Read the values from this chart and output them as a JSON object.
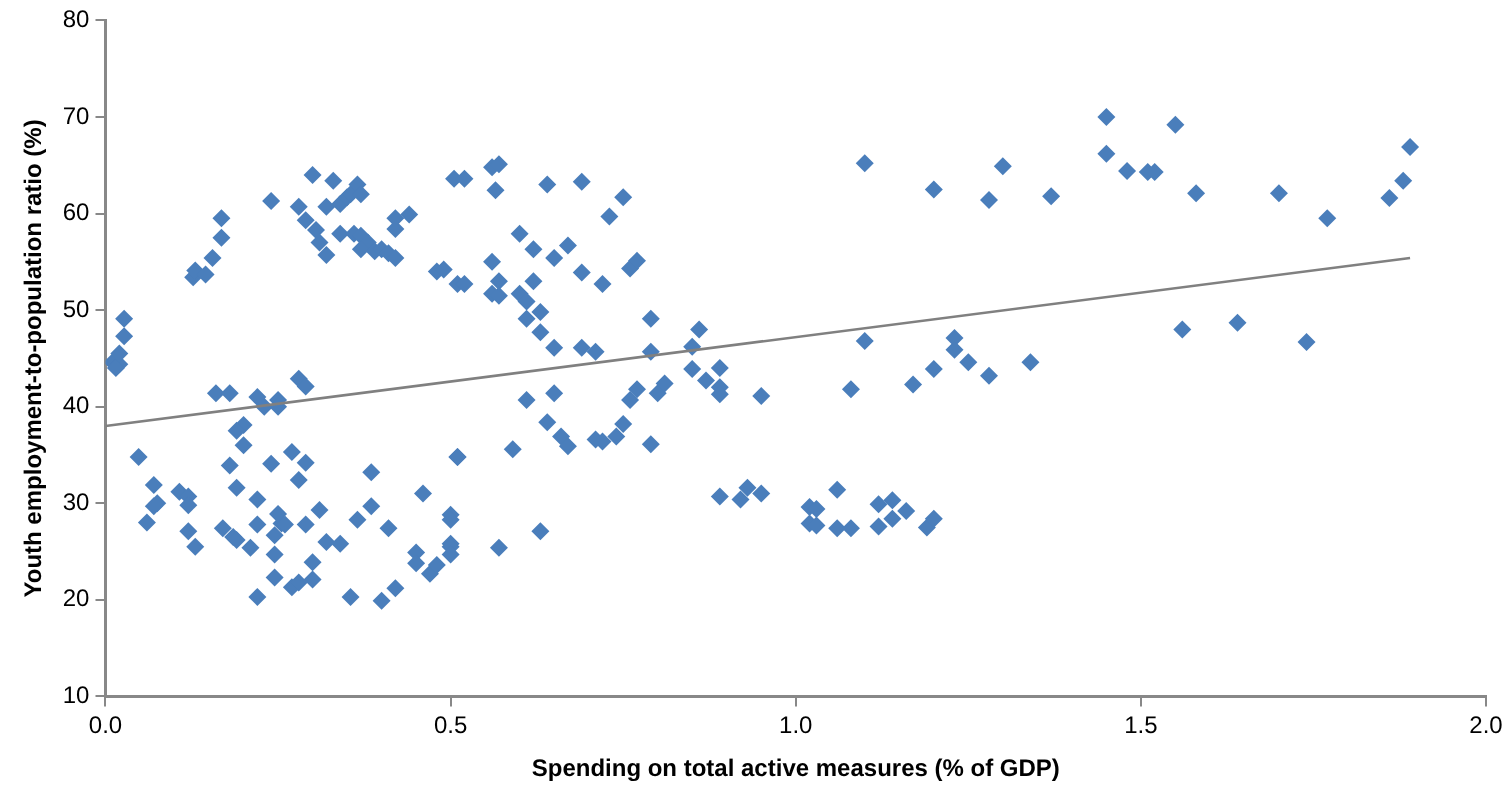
{
  "chart_data": {
    "type": "scatter",
    "xlabel": "Spending on total active measures (% of GDP)",
    "ylabel": "Youth employment-to-population ratio (%)",
    "xlim": [
      0,
      2
    ],
    "ylim": [
      10,
      80
    ],
    "xticks": [
      {
        "value": 0,
        "label": "0.0"
      },
      {
        "value": 0.5,
        "label": "0.5"
      },
      {
        "value": 1,
        "label": "1.0"
      },
      {
        "value": 1.5,
        "label": "1.5"
      },
      {
        "value": 2,
        "label": "2.0"
      }
    ],
    "yticks": [
      10,
      20,
      30,
      40,
      50,
      60,
      70,
      80
    ],
    "marker": "diamond",
    "series": [
      {
        "color": "#4a7ebb",
        "x": [
          0.01,
          0.02,
          0.015,
          0.02,
          0.027,
          0.027,
          0.048,
          0.06,
          0.07,
          0.07,
          0.075,
          0.107,
          0.12,
          0.12,
          0.12,
          0.13,
          0.127,
          0.13,
          0.145,
          0.155,
          0.168,
          0.168,
          0.16,
          0.18,
          0.2,
          0.2,
          0.19,
          0.18,
          0.19,
          0.17,
          0.185,
          0.19,
          0.21,
          0.22,
          0.22,
          0.24,
          0.24,
          0.22,
          0.23,
          0.25,
          0.25,
          0.22,
          0.25,
          0.255,
          0.245,
          0.26,
          0.245,
          0.245,
          0.27,
          0.28,
          0.29,
          0.28,
          0.29,
          0.29,
          0.3,
          0.3,
          0.27,
          0.28,
          0.31,
          0.32,
          0.34,
          0.355,
          0.365,
          0.385,
          0.385,
          0.41,
          0.4,
          0.42,
          0.45,
          0.45,
          0.47,
          0.48,
          0.46,
          0.5,
          0.5,
          0.51,
          0.28,
          0.3,
          0.33,
          0.29,
          0.305,
          0.31,
          0.32,
          0.32,
          0.34,
          0.35,
          0.355,
          0.365,
          0.37,
          0.34,
          0.36,
          0.37,
          0.38,
          0.37,
          0.39,
          0.4,
          0.41,
          0.42,
          0.42,
          0.42,
          0.44,
          0.48,
          0.505,
          0.51,
          0.52,
          0.56,
          0.57,
          0.565,
          0.64,
          0.69,
          0.75,
          0.73,
          0.49,
          0.52,
          0.56,
          0.57,
          0.56,
          0.57,
          0.6,
          0.62,
          0.6,
          0.61,
          0.63,
          0.61,
          0.62,
          0.63,
          0.65,
          0.67,
          0.69,
          0.72,
          0.76,
          0.77,
          0.79,
          0.65,
          0.69,
          0.71,
          0.79,
          0.86,
          0.85,
          0.85,
          0.87,
          0.89,
          0.89,
          0.89,
          0.95,
          0.61,
          0.65,
          0.76,
          0.77,
          0.8,
          0.81,
          0.51,
          0.59,
          0.64,
          0.66,
          0.67,
          0.71,
          0.72,
          0.74,
          0.75,
          0.79,
          0.5,
          0.5,
          0.5,
          0.57,
          0.63,
          0.89,
          0.92,
          0.93,
          0.95,
          1.02,
          1.02,
          1.1,
          1.2,
          1.28,
          1.3,
          1.37,
          1.45,
          1.48,
          1.51,
          1.1,
          1.08,
          1.17,
          1.2,
          1.23,
          1.23,
          1.25,
          1.28,
          1.34,
          1.03,
          1.03,
          1.06,
          1.06,
          1.08,
          1.12,
          1.12,
          1.14,
          1.14,
          1.16,
          1.19,
          1.2,
          1.45,
          1.55,
          1.52,
          1.58,
          1.7,
          1.77,
          1.86,
          1.88,
          1.89,
          1.56,
          1.64,
          1.74
        ],
        "values": [
          44.6,
          44.4,
          44,
          45.5,
          47.3,
          49.1,
          34.8,
          28,
          31.9,
          29.7,
          30,
          31.2,
          30.7,
          29.8,
          27.1,
          25.5,
          53.4,
          54.1,
          53.7,
          55.4,
          57.5,
          59.5,
          41.4,
          41.4,
          38.1,
          36,
          37.5,
          33.9,
          31.6,
          27.4,
          26.5,
          26.2,
          25.4,
          30.4,
          20.3,
          61.3,
          34.1,
          41,
          40,
          40.7,
          40,
          27.8,
          28.9,
          27.9,
          26.7,
          27.8,
          24.7,
          22.3,
          35.3,
          32.4,
          34.2,
          42.9,
          42.1,
          27.8,
          23.9,
          22.1,
          21.3,
          21.8,
          29.3,
          26,
          25.8,
          20.3,
          28.3,
          29.7,
          33.2,
          27.4,
          19.9,
          21.2,
          24.9,
          23.8,
          22.7,
          23.6,
          31,
          28.8,
          25.8,
          34.8,
          60.7,
          64,
          63.4,
          59.3,
          58.3,
          57,
          55.7,
          60.7,
          61,
          61.7,
          62,
          63,
          62,
          57.9,
          57.9,
          57.7,
          57,
          56.3,
          56.1,
          56.3,
          55.9,
          55.4,
          59.5,
          58.4,
          59.9,
          54,
          63.6,
          52.7,
          63.6,
          64.8,
          65.1,
          62.4,
          63,
          63.3,
          61.7,
          59.7,
          54.2,
          52.7,
          55,
          53,
          51.7,
          51.5,
          57.9,
          56.3,
          51.7,
          50.9,
          49.8,
          49.1,
          53,
          47.7,
          55.4,
          56.7,
          53.9,
          52.7,
          54.3,
          55.1,
          49.1,
          46.1,
          46.1,
          45.7,
          45.7,
          48,
          46.2,
          43.9,
          42.7,
          44,
          42,
          41.3,
          41.1,
          40.7,
          41.4,
          40.7,
          41.8,
          41.4,
          42.4,
          34.8,
          35.6,
          38.4,
          36.9,
          35.9,
          36.6,
          36.4,
          36.9,
          38.2,
          36.1,
          28.3,
          25.5,
          24.7,
          25.4,
          27.1,
          30.7,
          30.4,
          31.6,
          31,
          29.6,
          27.9,
          65.2,
          62.5,
          61.4,
          64.9,
          61.8,
          66.2,
          64.4,
          64.3,
          46.8,
          41.8,
          42.3,
          43.9,
          47.1,
          45.9,
          44.6,
          43.2,
          44.6,
          29.4,
          27.7,
          31.4,
          27.4,
          27.4,
          29.9,
          27.6,
          30.3,
          28.4,
          29.2,
          27.5,
          28.4,
          70,
          69.2,
          64.3,
          62.1,
          62.1,
          59.5,
          61.6,
          63.4,
          66.9,
          48,
          48.7,
          46.7
        ]
      },
      {
        "type": "line",
        "marker": "none",
        "color": "#808080",
        "x": [
          0,
          1.89
        ],
        "values": [
          38,
          55.4
        ]
      }
    ]
  }
}
